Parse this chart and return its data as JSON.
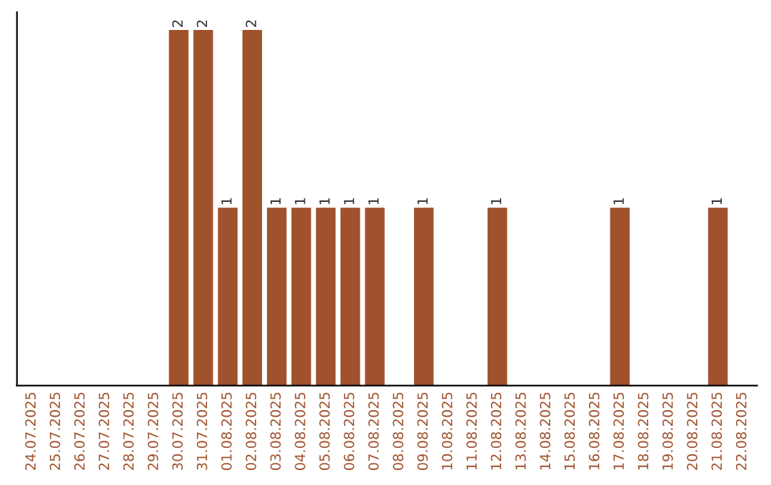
{
  "chart_data": {
    "type": "bar",
    "categories": [
      "24.07.2025",
      "25.07.2025",
      "26.07.2025",
      "27.07.2025",
      "28.07.2025",
      "29.07.2025",
      "30.07.2025",
      "31.07.2025",
      "01.08.2025",
      "02.08.2025",
      "03.08.2025",
      "04.08.2025",
      "05.08.2025",
      "06.08.2025",
      "07.08.2025",
      "08.08.2025",
      "09.08.2025",
      "10.08.2025",
      "11.08.2025",
      "12.08.2025",
      "13.08.2025",
      "14.08.2025",
      "15.08.2025",
      "16.08.2025",
      "17.08.2025",
      "18.08.2025",
      "19.08.2025",
      "20.08.2025",
      "21.08.2025",
      "22.08.2025"
    ],
    "values": [
      0,
      0,
      0,
      0,
      0,
      0,
      2,
      2,
      1,
      2,
      1,
      1,
      1,
      1,
      1,
      0,
      1,
      0,
      0,
      1,
      0,
      0,
      0,
      0,
      1,
      0,
      0,
      0,
      1,
      0
    ],
    "value_labels": [
      null,
      null,
      null,
      null,
      null,
      null,
      "2",
      "2",
      "1",
      "2",
      "1",
      "1",
      "1",
      "1",
      "1",
      null,
      "1",
      null,
      null,
      "1",
      null,
      null,
      null,
      null,
      "1",
      null,
      null,
      null,
      "1",
      null
    ],
    "color": "#a0522d",
    "ylim": [
      0,
      2.1
    ],
    "tick_labels": "x",
    "grid": false,
    "legend": false
  }
}
